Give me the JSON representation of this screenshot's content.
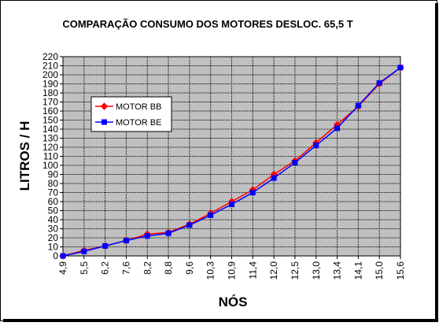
{
  "chart_data": {
    "type": "line",
    "title": "COMPARAÇÃO CONSUMO DOS MOTORES DESLOC. 65,5 T",
    "xlabel": "NÓS",
    "ylabel": "LITROS / H",
    "categories": [
      "4,9",
      "5,5",
      "6,2",
      "7,6",
      "8,2",
      "8,8",
      "9,6",
      "10,3",
      "10,9",
      "11,4",
      "12,0",
      "12,5",
      "13,0",
      "13,4",
      "14,1",
      "15,0",
      "15,6"
    ],
    "ylim": [
      0,
      220
    ],
    "yticks": [
      0,
      10,
      20,
      30,
      40,
      50,
      60,
      70,
      80,
      90,
      100,
      110,
      120,
      130,
      140,
      150,
      160,
      170,
      180,
      190,
      200,
      210,
      220
    ],
    "grid": true,
    "legend_position": "upper-left inside plot",
    "plot_background": "#c0c0c0",
    "series": [
      {
        "name": "MOTOR BB",
        "color": "#ff0000",
        "marker": "diamond",
        "values": [
          0,
          6,
          11,
          17,
          24,
          26,
          35,
          47,
          60,
          73,
          90,
          105,
          125,
          145,
          165,
          190,
          208
        ]
      },
      {
        "name": "MOTOR BE",
        "color": "#0000ff",
        "marker": "square",
        "values": [
          0,
          5,
          11,
          17,
          22,
          25,
          34,
          45,
          57,
          70,
          86,
          103,
          122,
          141,
          166,
          191,
          208
        ]
      }
    ]
  }
}
